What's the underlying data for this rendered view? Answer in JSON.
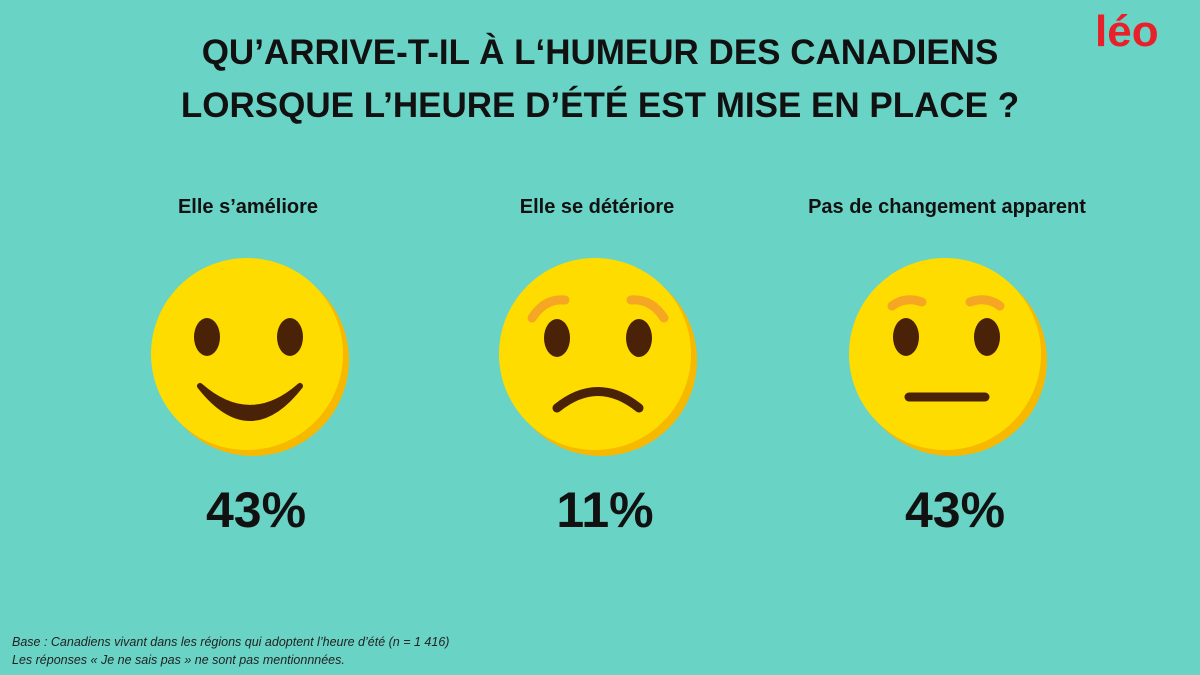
{
  "header": {
    "logo": "léo",
    "title": [
      "QU’ARRIVE-T-IL À L‘HUMEUR DES CANADIENS",
      "LORSQUE L’HEURE D’ÉTÉ EST MISE EN PLACE ?"
    ]
  },
  "items": [
    {
      "label": "Elle s’améliore",
      "value": "43%"
    },
    {
      "label": "Elle se détériore",
      "value": "11%"
    },
    {
      "label": "Pas de changement apparent",
      "value": "43%"
    }
  ],
  "footer": [
    "Base : Canadiens vivant dans les régions qui adoptent l’heure d’été (n = 1 416)",
    "Les réponses « Je ne sais pas » ne sont pas mentionnnées."
  ]
}
